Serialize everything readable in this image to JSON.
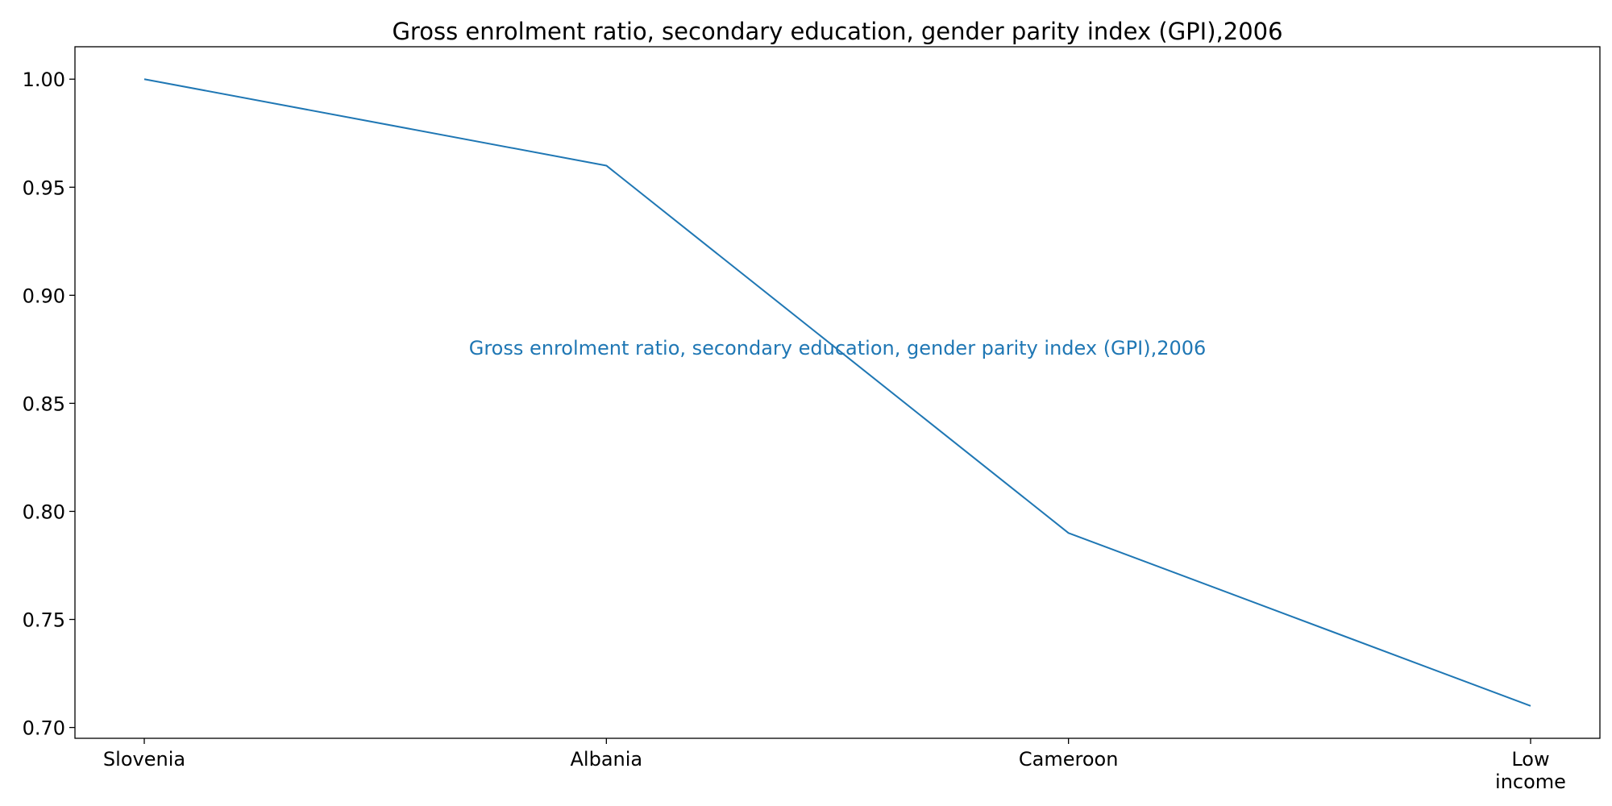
{
  "chart_data": {
    "type": "line",
    "title": "Gross enrolment ratio, secondary education, gender parity index (GPI),2006",
    "xlabel": "",
    "ylabel": "",
    "categories": [
      [
        "Slovenia"
      ],
      [
        "Albania"
      ],
      [
        "Cameroon"
      ],
      [
        "Low",
        "income"
      ]
    ],
    "series": [
      {
        "name": "Gross enrolment ratio, secondary education, gender parity index (GPI),2006",
        "values": [
          1.0,
          0.96,
          0.79,
          0.71
        ],
        "color": "#1f77b4"
      }
    ],
    "ylim": [
      0.695,
      1.015
    ],
    "yticks": [
      0.7,
      0.75,
      0.8,
      0.85,
      0.9,
      0.95,
      1.0
    ],
    "ytick_labels": [
      "0.70",
      "0.75",
      "0.80",
      "0.85",
      "0.90",
      "0.95",
      "1.00"
    ],
    "grid": false,
    "legend": "none"
  }
}
